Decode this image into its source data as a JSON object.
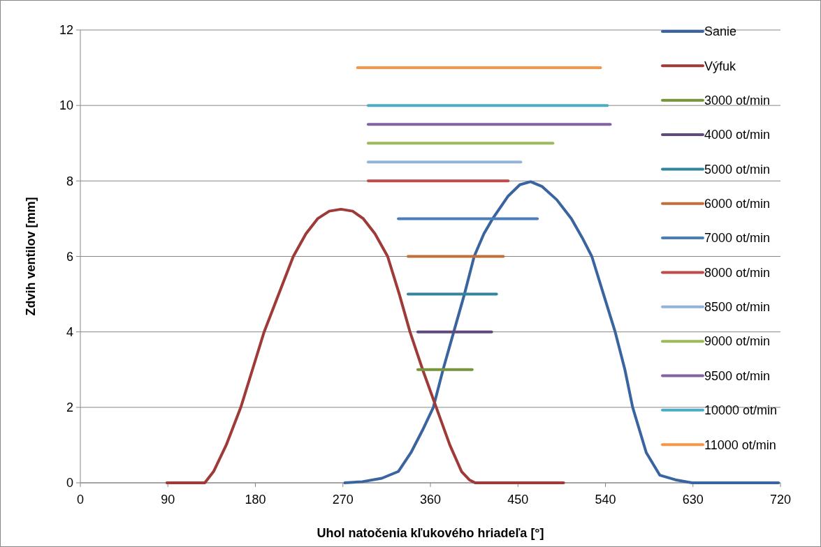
{
  "chart_data": {
    "type": "line",
    "xlabel": "Uhol natočenia kľukového hriadeľa [°]",
    "ylabel": "Zdvih ventilov [mm]",
    "xlim": [
      0,
      720
    ],
    "xticks": [
      0,
      90,
      180,
      270,
      360,
      450,
      540,
      630,
      720
    ],
    "ylim": [
      0,
      12
    ],
    "yticks": [
      0,
      2,
      4,
      6,
      8,
      10,
      12
    ],
    "grid": "y",
    "legend": "right",
    "marker": "none",
    "series": [
      {
        "name": "Sanie",
        "color": "#3a64a0",
        "x": [
          272,
          290,
          310,
          327,
          340,
          352,
          363,
          373,
          384,
          395,
          405,
          415,
          424,
          440,
          452,
          463,
          475,
          490,
          505,
          516,
          526,
          538,
          550,
          560,
          568,
          582,
          596,
          612,
          629,
          660,
          690,
          718
        ],
        "values": [
          0,
          0.03,
          0.12,
          0.3,
          0.8,
          1.4,
          2,
          3,
          4,
          5,
          6,
          6.6,
          7,
          7.6,
          7.9,
          7.98,
          7.85,
          7.5,
          7,
          6.5,
          6,
          5,
          4,
          3,
          2,
          0.8,
          0.2,
          0.08,
          0,
          0,
          0,
          0
        ]
      },
      {
        "name": "Výfuk",
        "color": "#9e3b38",
        "x": [
          89,
          110,
          128,
          137,
          150,
          165,
          177,
          189,
          204,
          219,
          232,
          244,
          256,
          268,
          280,
          291,
          303,
          316,
          328,
          339,
          352,
          366,
          380,
          392,
          400,
          406,
          430,
          460,
          497
        ],
        "values": [
          0,
          0,
          0,
          0.3,
          1,
          2,
          3,
          4,
          5,
          6,
          6.6,
          7,
          7.2,
          7.25,
          7.2,
          7,
          6.6,
          6,
          5,
          4,
          3,
          2,
          1,
          0.3,
          0.08,
          0,
          0,
          0,
          0
        ]
      },
      {
        "name": "3000 ot/min",
        "color": "#77933c",
        "x": [
          347,
          403
        ],
        "values": [
          3,
          3
        ]
      },
      {
        "name": "4000 ot/min",
        "color": "#604a7b",
        "x": [
          347,
          423
        ],
        "values": [
          4,
          4
        ]
      },
      {
        "name": "5000 ot/min",
        "color": "#31859c",
        "x": [
          337,
          428
        ],
        "values": [
          5,
          5
        ]
      },
      {
        "name": "6000 ot/min",
        "color": "#c0703a",
        "x": [
          337,
          435
        ],
        "values": [
          6,
          6
        ]
      },
      {
        "name": "7000 ot/min",
        "color": "#4a7ebb",
        "x": [
          327,
          470
        ],
        "values": [
          7,
          7
        ]
      },
      {
        "name": "8000 ot/min",
        "color": "#be4b48",
        "x": [
          296,
          440
        ],
        "values": [
          8,
          8
        ]
      },
      {
        "name": "8500 ot/min",
        "color": "#95b3d7",
        "x": [
          296,
          453
        ],
        "values": [
          8.5,
          8.5
        ]
      },
      {
        "name": "9000 ot/min",
        "color": "#9bbb59",
        "x": [
          296,
          486
        ],
        "values": [
          9,
          9
        ]
      },
      {
        "name": "9500 ot/min",
        "color": "#8064a2",
        "x": [
          296,
          545
        ],
        "values": [
          9.5,
          9.5
        ]
      },
      {
        "name": "10000 ot/min",
        "color": "#4bacc6",
        "x": [
          296,
          542
        ],
        "values": [
          10,
          10
        ]
      },
      {
        "name": "11000 ot/min",
        "color": "#f79646",
        "x": [
          285,
          535
        ],
        "values": [
          11,
          11
        ]
      }
    ]
  }
}
